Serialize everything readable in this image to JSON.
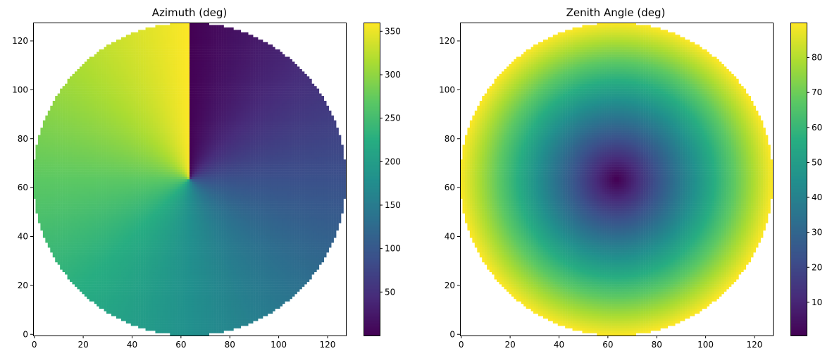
{
  "chart_data": [
    {
      "type": "heatmap",
      "title": "Azimuth (deg)",
      "quantity": "azimuth",
      "grid_size": 128,
      "mask": "circle",
      "xlim": [
        -0.5,
        127.5
      ],
      "ylim": [
        -0.5,
        127.5
      ],
      "xticks": [
        0,
        20,
        40,
        60,
        80,
        100,
        120
      ],
      "yticks": [
        0,
        20,
        40,
        60,
        80,
        100,
        120
      ],
      "colormap": "viridis",
      "colorbar": {
        "min": 0,
        "max": 360,
        "ticks": [
          50,
          100,
          150,
          200,
          250,
          300,
          350
        ]
      },
      "grid": false
    },
    {
      "type": "heatmap",
      "title": "Zenith Angle (deg)",
      "quantity": "zenith",
      "grid_size": 128,
      "mask": "circle",
      "xlim": [
        -0.5,
        127.5
      ],
      "ylim": [
        -0.5,
        127.5
      ],
      "xticks": [
        0,
        20,
        40,
        60,
        80,
        100,
        120
      ],
      "yticks": [
        0,
        20,
        40,
        60,
        80,
        100,
        120
      ],
      "colormap": "viridis",
      "colorbar": {
        "min": 0.5,
        "max": 90,
        "ticks": [
          10,
          20,
          30,
          40,
          50,
          60,
          70,
          80
        ]
      },
      "grid": false
    }
  ]
}
